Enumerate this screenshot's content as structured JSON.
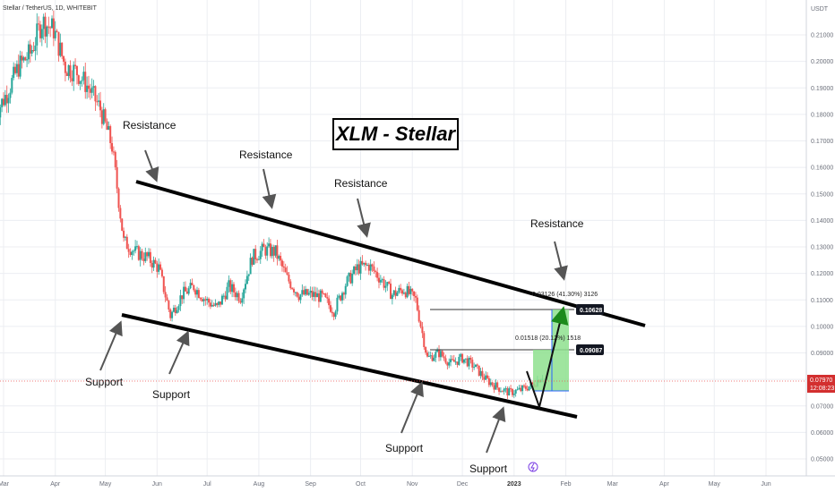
{
  "symbol": "Stellar / TetherUS, 1D, WHITEBIT",
  "title": "XLM  - Stellar",
  "currency": "USDT",
  "colors": {
    "up": "#26a69a",
    "down": "#ef5350",
    "grid": "#eceef2",
    "line": "#000000",
    "target": "#7be37b",
    "current_price": "#d32f2f"
  },
  "price_scale": [
    "0.21000",
    "0.20000",
    "0.19000",
    "0.18000",
    "0.17000",
    "0.16000",
    "0.15000",
    "0.14000",
    "0.13000",
    "0.12000",
    "0.11000",
    "0.10000",
    "0.09000",
    "0.08000",
    "0.07000",
    "0.06000",
    "0.05000"
  ],
  "time_scale": [
    "Mar",
    "Apr",
    "May",
    "Jun",
    "Jul",
    "Aug",
    "Sep",
    "Oct",
    "Nov",
    "Dec",
    "2023",
    "Feb",
    "Mar",
    "Apr",
    "May",
    "Jun"
  ],
  "current_price": {
    "value": "0.07970",
    "timer": "12:08:23"
  },
  "targets": [
    {
      "value": "0.10628",
      "label": "0.03126 (41.30%) 3126"
    },
    {
      "value": "0.09087",
      "label": "0.01518 (20.12%) 1518"
    }
  ],
  "annotations": {
    "resistance": [
      "Resistance",
      "Resistance",
      "Resistance",
      "Resistance"
    ],
    "support": [
      "Support",
      "Support",
      "Support",
      "Support"
    ]
  },
  "chart_data": {
    "type": "candlestick",
    "title": "XLM  - Stellar",
    "ylim": [
      0.045,
      0.22
    ],
    "x": [
      "2022-02-24",
      "2022-03-03",
      "2022-03-10",
      "2022-03-17",
      "2022-03-24",
      "2022-03-31",
      "2022-04-07",
      "2022-04-14",
      "2022-04-21",
      "2022-04-28",
      "2022-05-05",
      "2022-05-12",
      "2022-05-19",
      "2022-05-26",
      "2022-06-02",
      "2022-06-09",
      "2022-06-16",
      "2022-06-23",
      "2022-06-30",
      "2022-07-07",
      "2022-07-14",
      "2022-07-21",
      "2022-07-28",
      "2022-08-04",
      "2022-08-11",
      "2022-08-18",
      "2022-08-25",
      "2022-09-01",
      "2022-09-08",
      "2022-09-15",
      "2022-09-22",
      "2022-09-29",
      "2022-10-06",
      "2022-10-13",
      "2022-10-20",
      "2022-10-27",
      "2022-11-03",
      "2022-11-10",
      "2022-11-17",
      "2022-11-24",
      "2022-12-01",
      "2022-12-08",
      "2022-12-15",
      "2022-12-22",
      "2022-12-29",
      "2023-01-05",
      "2023-01-12",
      "2023-01-19"
    ],
    "close": [
      0.18,
      0.188,
      0.198,
      0.203,
      0.215,
      0.212,
      0.198,
      0.196,
      0.19,
      0.182,
      0.168,
      0.132,
      0.128,
      0.126,
      0.122,
      0.104,
      0.112,
      0.115,
      0.11,
      0.107,
      0.115,
      0.111,
      0.126,
      0.129,
      0.128,
      0.118,
      0.112,
      0.112,
      0.111,
      0.106,
      0.116,
      0.122,
      0.123,
      0.118,
      0.112,
      0.114,
      0.11,
      0.088,
      0.09,
      0.086,
      0.088,
      0.085,
      0.08,
      0.077,
      0.075,
      0.076,
      0.078,
      0.082
    ],
    "channel": {
      "upper": {
        "from": [
          "2022-05-14",
          0.151
        ],
        "to": [
          "2023-03-01",
          0.102
        ]
      },
      "lower": {
        "from": [
          "2022-05-01",
          0.103
        ],
        "to": [
          "2023-01-31",
          0.072
        ]
      }
    },
    "targets": [
      0.10628,
      0.09087
    ],
    "current_price": 0.0797
  }
}
